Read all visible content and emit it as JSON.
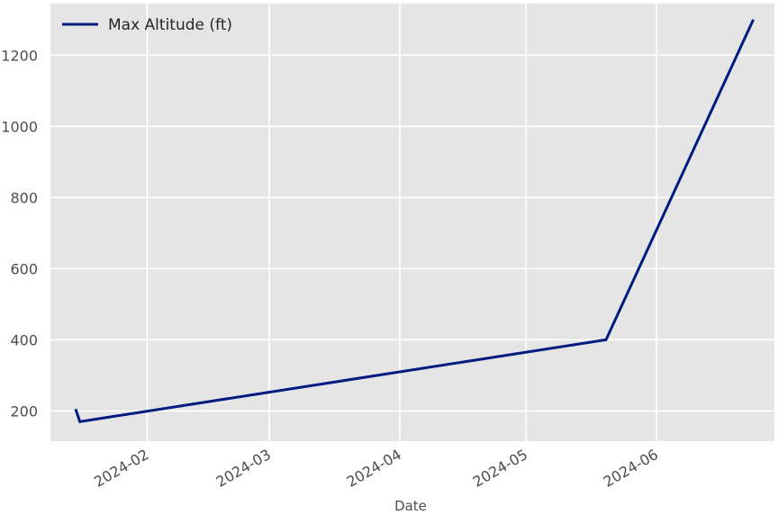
{
  "chart_data": {
    "type": "line",
    "title": "",
    "xlabel": "Date",
    "ylabel": "",
    "grid": true,
    "legend_position": "top-left",
    "x_axis_type": "date",
    "xlim": [
      "2024-01-09",
      "2024-06-29"
    ],
    "ylim": [
      115,
      1345
    ],
    "x_ticks": [
      "2024-02-01",
      "2024-03-01",
      "2024-04-01",
      "2024-05-01",
      "2024-06-01"
    ],
    "x_tick_labels": [
      "2024-02",
      "2024-03",
      "2024-04",
      "2024-05",
      "2024-06"
    ],
    "y_ticks": [
      200,
      400,
      600,
      800,
      1000,
      1200
    ],
    "y_tick_labels": [
      "200",
      "400",
      "600",
      "800",
      "1000",
      "1200"
    ],
    "series": [
      {
        "name": "Max Altitude (ft)",
        "color": "#001c7f",
        "points": [
          {
            "x": "2024-01-15",
            "y": 205
          },
          {
            "x": "2024-01-16",
            "y": 170
          },
          {
            "x": "2024-05-20",
            "y": 400
          },
          {
            "x": "2024-06-24",
            "y": 1300
          }
        ]
      }
    ]
  },
  "colors": {
    "plot_background": "#e5e5e5",
    "grid": "#ffffff",
    "line": "#001c7f"
  }
}
